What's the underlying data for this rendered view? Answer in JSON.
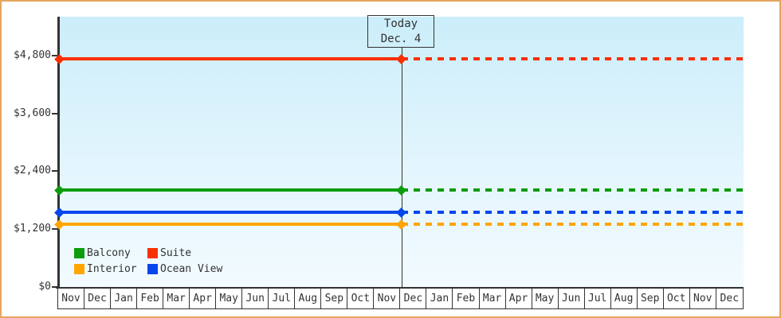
{
  "palette": {
    "frame_border": "#e6a55f",
    "plot_bg_top": "#cbeefa",
    "plot_bg_bottom": "#f2fbff",
    "axis_color": "#333333",
    "text_color": "#333333",
    "month_cell_bg": "#ffffff"
  },
  "today_box": {
    "line1": "Today",
    "line2": "Dec. 4"
  },
  "chart_data": {
    "type": "line",
    "title": "",
    "xlabel": "",
    "ylabel": "",
    "ylim": [
      0,
      4800
    ],
    "grid": false,
    "legend_position": "bottom-left-inside",
    "x_labels": [
      "Nov",
      "Dec",
      "Jan",
      "Feb",
      "Mar",
      "Apr",
      "May",
      "Jun",
      "Jul",
      "Aug",
      "Sep",
      "Oct",
      "Nov",
      "Dec",
      "Jan",
      "Feb",
      "Mar",
      "Apr",
      "May",
      "Jun",
      "Jul",
      "Aug",
      "Sep",
      "Oct",
      "Nov",
      "Dec"
    ],
    "y_ticks": [
      {
        "label": "$0",
        "value": 0
      },
      {
        "label": "$1,200",
        "value": 1200
      },
      {
        "label": "$2,400",
        "value": 2400
      },
      {
        "label": "$3,600",
        "value": 3600
      },
      {
        "label": "$4,800",
        "value": 4800
      }
    ],
    "today_marker": {
      "line1": "Today",
      "line2": "Dec. 4",
      "month_index": 13
    },
    "series": [
      {
        "name": "Suite",
        "color": "#f92f00",
        "value": 4730,
        "style_before_today": "solid",
        "style_after_today": "dotted"
      },
      {
        "name": "Balcony",
        "color": "#0c9c0c",
        "value": 2000,
        "style_before_today": "solid",
        "style_after_today": "dotted"
      },
      {
        "name": "Ocean View",
        "color": "#0646ec",
        "value": 1540,
        "style_before_today": "solid",
        "style_after_today": "dotted"
      },
      {
        "name": "Interior",
        "color": "#ffa500",
        "value": 1290,
        "style_before_today": "solid",
        "style_after_today": "dotted"
      }
    ],
    "legend_rows": [
      [
        "Balcony",
        "Suite"
      ],
      [
        "Interior",
        "Ocean View"
      ]
    ]
  }
}
